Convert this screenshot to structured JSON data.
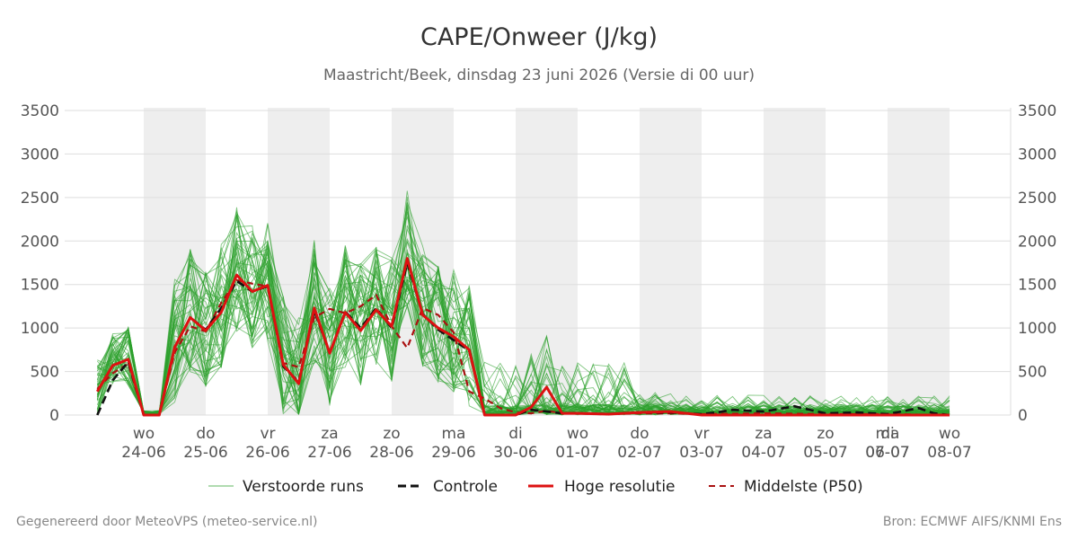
{
  "title": "CAPE/Onweer (J/kg)",
  "subtitle": "Maastricht/Beek, dinsdag 23 juni 2026 (Versie di 00 uur)",
  "footer_left": "Gegenereerd door MeteoVPS (meteo-service.nl)",
  "footer_right": "Bron: ECMWF AIFS/KNMI Ens",
  "colors": {
    "ensemble": "#2ca02c",
    "control": "#111111",
    "hires": "#dd1111",
    "median": "#aa1111",
    "night_band": "#eeeeee",
    "grid": "#dddddd"
  },
  "chart_data": {
    "type": "line",
    "title": "CAPE/Onweer (J/kg)",
    "x_unit": "days since 24-06 00:00",
    "xlim": [
      -0.75,
      13.0
    ],
    "ylim": [
      0,
      3500
    ],
    "y_ticks": [
      0,
      500,
      1000,
      1500,
      2000,
      2500,
      3000,
      3500
    ],
    "x_ticks": [
      {
        "x": 0,
        "day": "wo",
        "date": "24-06"
      },
      {
        "x": 1,
        "day": "do",
        "date": "25-06"
      },
      {
        "x": 2,
        "day": "vr",
        "date": "26-06"
      },
      {
        "x": 3,
        "day": "za",
        "date": "27-06"
      },
      {
        "x": 4,
        "day": "zo",
        "date": "28-06"
      },
      {
        "x": 5,
        "day": "ma",
        "date": "29-06"
      },
      {
        "x": 6,
        "day": "di",
        "date": "30-06"
      },
      {
        "x": 7,
        "day": "wo",
        "date": "01-07"
      },
      {
        "x": 8,
        "day": "do",
        "date": "02-07"
      },
      {
        "x": 9,
        "day": "vr",
        "date": "03-07"
      },
      {
        "x": 10,
        "day": "za",
        "date": "04-07"
      },
      {
        "x": 11,
        "day": "zo",
        "date": "05-07"
      },
      {
        "x": 12,
        "day": "ma",
        "date": "06-07"
      },
      {
        "x": 13,
        "day": "wo",
        "date": "08-07"
      }
    ],
    "extra_x_ticks": [
      {
        "x": 13,
        "day": "di",
        "date": "07-07"
      }
    ],
    "shaded_days": [
      [
        0,
        1
      ],
      [
        2,
        3
      ],
      [
        4,
        5
      ],
      [
        6,
        7
      ],
      [
        8,
        9
      ],
      [
        10,
        11
      ],
      [
        12,
        13
      ]
    ],
    "legend": [
      "Verstoorde runs",
      "Controle",
      "Hoge resolutie",
      "Middelste (P50)"
    ],
    "series": [
      {
        "name": "Hoge resolutie",
        "x": [
          -0.75,
          -0.5,
          -0.25,
          0,
          0.25,
          0.5,
          0.75,
          1,
          1.25,
          1.5,
          1.75,
          2,
          2.25,
          2.5,
          2.75,
          3,
          3.25,
          3.5,
          3.75,
          4,
          4.25,
          4.5,
          4.75,
          5,
          5.25,
          5.5,
          5.75,
          6,
          6.25,
          6.5,
          6.75,
          7,
          7.5,
          8,
          8.5,
          9,
          10,
          11,
          12,
          13
        ],
        "y": [
          270,
          570,
          640,
          0,
          0,
          780,
          1120,
          970,
          1180,
          1610,
          1420,
          1490,
          580,
          360,
          1230,
          710,
          1180,
          970,
          1210,
          1020,
          1800,
          1150,
          1000,
          900,
          750,
          0,
          0,
          0,
          90,
          320,
          20,
          20,
          10,
          30,
          40,
          0,
          0,
          0,
          0,
          0
        ]
      },
      {
        "name": "Controle",
        "x": [
          -0.75,
          -0.5,
          -0.25,
          0,
          0.25,
          0.5,
          0.75,
          1,
          1.25,
          1.5,
          1.75,
          2,
          2.25,
          2.5,
          2.75,
          3,
          3.25,
          3.5,
          3.75,
          4,
          4.25,
          4.5,
          4.75,
          5,
          5.25,
          5.5,
          5.75,
          6,
          6.25,
          6.5,
          6.75,
          7,
          7.5,
          8,
          8.5,
          9,
          9.25,
          9.5,
          10,
          10.5,
          11,
          11.5,
          12,
          12.5,
          12.75,
          13
        ],
        "y": [
          0,
          400,
          610,
          0,
          0,
          780,
          1120,
          980,
          1230,
          1540,
          1420,
          1480,
          560,
          380,
          1200,
          710,
          1190,
          1000,
          1230,
          1000,
          1750,
          1160,
          980,
          860,
          740,
          0,
          0,
          0,
          60,
          40,
          20,
          20,
          10,
          30,
          30,
          10,
          30,
          60,
          40,
          100,
          20,
          30,
          10,
          80,
          20,
          0
        ]
      },
      {
        "name": "Middelste (P50)",
        "x": [
          -0.75,
          -0.5,
          -0.25,
          0,
          0.25,
          0.5,
          0.75,
          1,
          1.25,
          1.5,
          1.75,
          2,
          2.25,
          2.5,
          2.75,
          3,
          3.25,
          3.5,
          3.75,
          4,
          4.25,
          4.5,
          4.75,
          5,
          5.25,
          5.5,
          5.75,
          6,
          6.25,
          6.5,
          6.75,
          7,
          7.5,
          8,
          8.5,
          9,
          10,
          11,
          12,
          13
        ],
        "y": [
          300,
          480,
          590,
          0,
          0,
          720,
          1020,
          960,
          1290,
          1550,
          1510,
          1480,
          600,
          550,
          1120,
          1220,
          1170,
          1250,
          1380,
          1020,
          770,
          1230,
          1150,
          950,
          270,
          190,
          80,
          30,
          20,
          50,
          20,
          20,
          10,
          20,
          20,
          10,
          20,
          10,
          10,
          0
        ]
      }
    ]
  }
}
